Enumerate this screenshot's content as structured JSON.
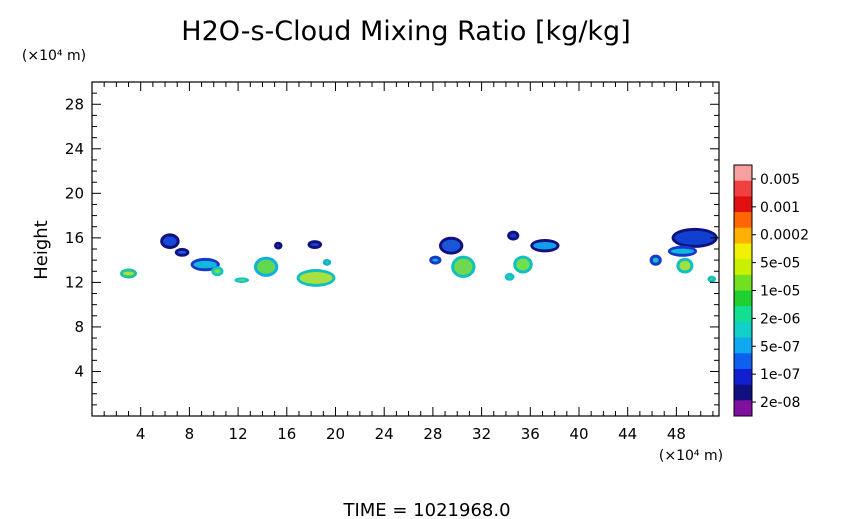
{
  "chart_data": {
    "type": "heatmap",
    "title": "H2O-s-Cloud Mixing Ratio [kg/kg]",
    "ylabel": "Height",
    "y_unit": "(×10⁴ m)",
    "x_unit": "(×10⁴ m)",
    "footer": "TIME  =  1021968.0",
    "xlim": [
      0,
      51.5
    ],
    "ylim": [
      0,
      30
    ],
    "x_ticks": [
      "4",
      "8",
      "12",
      "16",
      "20",
      "24",
      "28",
      "32",
      "36",
      "40",
      "44",
      "48"
    ],
    "y_ticks": [
      "4",
      "8",
      "12",
      "16",
      "20",
      "24",
      "28"
    ],
    "colorbar": {
      "labels": [
        "0.005",
        "0.001",
        "0.0002",
        "5e-05",
        "1e-05",
        "2e-06",
        "5e-07",
        "1e-07",
        "2e-08"
      ],
      "colors": [
        "#f8a0a0",
        "#f04040",
        "#e01010",
        "#ff6600",
        "#ffb000",
        "#f0f000",
        "#c8f000",
        "#70e020",
        "#20d030",
        "#10e090",
        "#10d0c8",
        "#10a8f0",
        "#1060f0",
        "#1020d0",
        "#101080",
        "#8010a0"
      ]
    },
    "clouds": [
      {
        "cx": 3.0,
        "cy": 12.8,
        "rx": 0.7,
        "ry": 0.45,
        "color": "#a8e040",
        "edge": "#20c0a0"
      },
      {
        "cx": 6.4,
        "cy": 15.7,
        "rx": 0.8,
        "ry": 0.7,
        "color": "#1848d8",
        "edge": "#101080"
      },
      {
        "cx": 7.4,
        "cy": 14.7,
        "rx": 0.6,
        "ry": 0.4,
        "color": "#1060e0",
        "edge": "#101080"
      },
      {
        "cx": 9.3,
        "cy": 13.6,
        "rx": 1.2,
        "ry": 0.6,
        "color": "#10b8e0",
        "edge": "#1838c8"
      },
      {
        "cx": 10.3,
        "cy": 13.0,
        "rx": 0.5,
        "ry": 0.45,
        "color": "#80e040",
        "edge": "#10c8c0"
      },
      {
        "cx": 12.3,
        "cy": 12.2,
        "rx": 0.6,
        "ry": 0.25,
        "color": "#60e050",
        "edge": "#10c0d0"
      },
      {
        "cx": 14.3,
        "cy": 13.4,
        "rx": 1.0,
        "ry": 0.9,
        "color": "#60d850",
        "edge": "#10b0e0"
      },
      {
        "cx": 15.3,
        "cy": 15.3,
        "rx": 0.35,
        "ry": 0.35,
        "color": "#1838d0",
        "edge": "#101080"
      },
      {
        "cx": 18.3,
        "cy": 15.4,
        "rx": 0.6,
        "ry": 0.4,
        "color": "#1848d8",
        "edge": "#101080"
      },
      {
        "cx": 18.4,
        "cy": 12.4,
        "rx": 1.6,
        "ry": 0.8,
        "color": "#a8e040",
        "edge": "#10c0c0"
      },
      {
        "cx": 19.3,
        "cy": 13.8,
        "rx": 0.35,
        "ry": 0.3,
        "color": "#40d870",
        "edge": "#10b0d0"
      },
      {
        "cx": 29.5,
        "cy": 15.3,
        "rx": 1.0,
        "ry": 0.8,
        "color": "#1858d8",
        "edge": "#101080"
      },
      {
        "cx": 30.5,
        "cy": 13.4,
        "rx": 1.0,
        "ry": 1.0,
        "color": "#70d850",
        "edge": "#10c0c0"
      },
      {
        "cx": 28.2,
        "cy": 14.0,
        "rx": 0.5,
        "ry": 0.4,
        "color": "#10b0e0",
        "edge": "#1838c8"
      },
      {
        "cx": 34.6,
        "cy": 16.2,
        "rx": 0.5,
        "ry": 0.45,
        "color": "#1838c8",
        "edge": "#101080"
      },
      {
        "cx": 37.2,
        "cy": 15.3,
        "rx": 1.2,
        "ry": 0.6,
        "color": "#10a0e8",
        "edge": "#101080"
      },
      {
        "cx": 35.4,
        "cy": 13.6,
        "rx": 0.8,
        "ry": 0.8,
        "color": "#70e050",
        "edge": "#10c0c0"
      },
      {
        "cx": 34.3,
        "cy": 12.5,
        "rx": 0.4,
        "ry": 0.35,
        "color": "#40d860",
        "edge": "#10c0d0"
      },
      {
        "cx": 49.5,
        "cy": 16.0,
        "rx": 1.9,
        "ry": 0.9,
        "color": "#1040d0",
        "edge": "#101080"
      },
      {
        "cx": 48.5,
        "cy": 14.8,
        "rx": 1.2,
        "ry": 0.5,
        "color": "#10b8e0",
        "edge": "#1838c8"
      },
      {
        "cx": 48.7,
        "cy": 13.5,
        "rx": 0.7,
        "ry": 0.7,
        "color": "#a0e040",
        "edge": "#10c0c0"
      },
      {
        "cx": 46.3,
        "cy": 14.0,
        "rx": 0.5,
        "ry": 0.5,
        "color": "#10c0d0",
        "edge": "#1838c8"
      },
      {
        "cx": 50.9,
        "cy": 12.3,
        "rx": 0.35,
        "ry": 0.3,
        "color": "#60d850",
        "edge": "#10c0c0"
      }
    ]
  }
}
